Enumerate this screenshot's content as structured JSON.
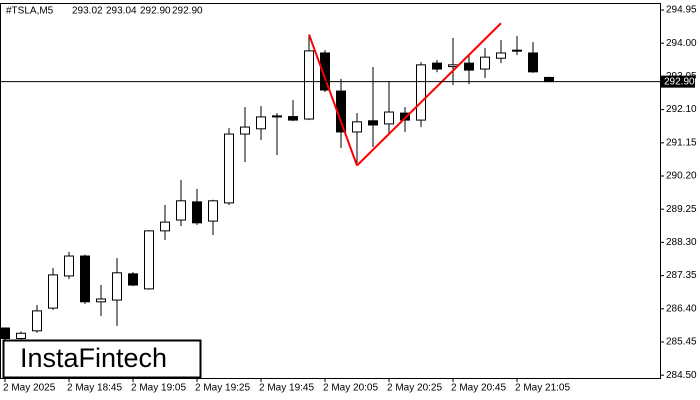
{
  "header": {
    "symbol": "#TSLA,M5",
    "ohlc": [
      "293.02",
      "293.04",
      "292.90",
      "292.90"
    ]
  },
  "logo": "InstaFintech",
  "chart_data": {
    "type": "candlestick",
    "categories": [
      "2 May 2025",
      null,
      null,
      null,
      "2 May 18:45",
      null,
      null,
      null,
      "2 May 19:05",
      null,
      null,
      null,
      "2 May 19:25",
      null,
      null,
      null,
      "2 May 19:45",
      null,
      null,
      null,
      "2 May 20:05",
      null,
      null,
      null,
      "2 May 20:25",
      null,
      null,
      null,
      "2 May 20:45",
      null,
      null,
      null,
      "2 May 21:05",
      null,
      null
    ],
    "open": [
      285.85,
      285.55,
      285.77,
      286.42,
      287.34,
      287.91,
      286.6,
      286.65,
      287.4,
      286.97,
      288.63,
      288.94,
      289.46,
      288.91,
      289.43,
      291.4,
      291.55,
      291.89,
      291.9,
      291.83,
      293.72,
      292.63,
      291.46,
      291.78,
      291.69,
      292.0,
      291.8,
      293.43,
      293.33,
      293.43,
      293.26,
      293.57,
      293.78,
      293.72,
      293.02
    ],
    "high": [
      285.87,
      285.75,
      286.51,
      287.57,
      288.03,
      287.95,
      287.08,
      287.85,
      287.45,
      288.65,
      289.37,
      290.09,
      289.83,
      289.52,
      291.57,
      292.17,
      292.2,
      292.0,
      292.37,
      294.21,
      293.8,
      292.98,
      292.0,
      293.32,
      292.89,
      292.17,
      293.46,
      293.52,
      294.15,
      293.66,
      293.86,
      294.09,
      294.21,
      294.03,
      293.04
    ],
    "low": [
      285.4,
      285.35,
      285.71,
      286.37,
      287.25,
      286.54,
      286.19,
      285.91,
      287.05,
      286.95,
      288.37,
      288.77,
      288.8,
      288.51,
      289.37,
      290.6,
      291.23,
      290.8,
      291.77,
      291.8,
      292.6,
      291.0,
      290.57,
      291.03,
      291.37,
      291.46,
      291.6,
      293.17,
      292.8,
      292.83,
      293.0,
      293.43,
      293.66,
      293.15,
      292.9
    ],
    "close": [
      285.55,
      285.7,
      286.34,
      287.37,
      287.91,
      286.6,
      286.68,
      287.43,
      287.08,
      288.63,
      288.88,
      289.49,
      288.86,
      289.49,
      291.4,
      291.6,
      291.89,
      291.92,
      291.8,
      293.78,
      292.66,
      291.46,
      291.75,
      291.66,
      292.03,
      291.8,
      293.38,
      293.26,
      293.38,
      293.23,
      293.6,
      293.72,
      293.8,
      293.18,
      292.9
    ],
    "ylim": [
      284.42,
      295.15
    ],
    "yticks": [
      {
        "value": 284.5,
        "label": "284.50"
      },
      285.45,
      {
        "value": 286.4,
        "label": "286.40"
      },
      287.35,
      {
        "value": 288.3,
        "label": "288.30"
      },
      289.25,
      {
        "value": 290.2,
        "label": "290.20"
      },
      291.15,
      {
        "value": 292.1,
        "label": "292.10"
      },
      293.05,
      {
        "value": 294,
        "label": "294.00"
      },
      294.95
    ],
    "last_price": {
      "value": 292.9,
      "label": "292.90"
    },
    "up_color": "#ffffff",
    "down_color": "#000000",
    "pattern": {
      "color": "#ff0000",
      "points": [
        {
          "index": 19,
          "value": 294.25
        },
        {
          "index": 22,
          "value": 290.5
        },
        {
          "index": 31,
          "value": 294.57
        }
      ]
    }
  }
}
